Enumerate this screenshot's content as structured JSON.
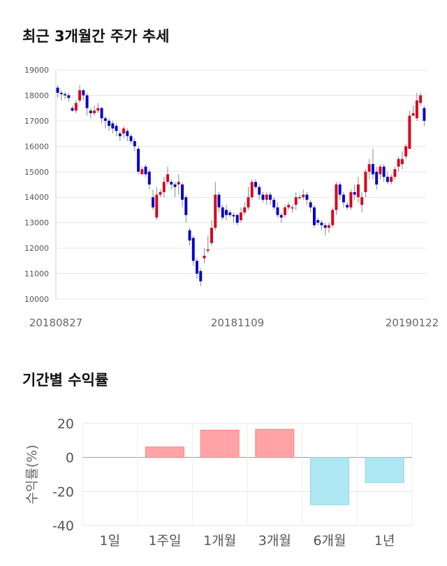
{
  "sections": {
    "price_title": "최근 3개월간 주가 추세",
    "returns_title": "기간별 수익률"
  },
  "colors": {
    "up": "#d9001b",
    "down": "#0000cc",
    "positive_bar": "#ffa3a6",
    "negative_bar": "#aee7f2"
  },
  "chart_data": [
    {
      "type": "candlestick",
      "title": "최근 3개월간 주가 추세",
      "ylim": [
        10000,
        19000
      ],
      "y_ticks": [
        "19000",
        "18000",
        "17000",
        "16000",
        "15000",
        "14000",
        "13000",
        "12000",
        "11000",
        "10000"
      ],
      "x_tick_labels": [
        "20180827",
        "20181109",
        "20190122"
      ],
      "grid": true,
      "candles": [
        [
          18300,
          18100,
          18400,
          17900
        ],
        [
          18100,
          18050,
          18200,
          17800
        ],
        [
          18050,
          18000,
          18150,
          17850
        ],
        [
          18000,
          17900,
          18100,
          17750
        ],
        [
          17500,
          17400,
          17600,
          17350
        ],
        [
          17400,
          17700,
          17800,
          17300
        ],
        [
          17800,
          18200,
          18400,
          17700
        ],
        [
          18200,
          18000,
          18250,
          17800
        ],
        [
          18000,
          17500,
          18100,
          17200
        ],
        [
          17400,
          17300,
          17500,
          17100
        ],
        [
          17300,
          17400,
          17600,
          17200
        ],
        [
          17400,
          17500,
          17700,
          17300
        ],
        [
          17500,
          17100,
          17550,
          16900
        ],
        [
          17100,
          17000,
          17200,
          16700
        ],
        [
          17000,
          16800,
          17100,
          16600
        ],
        [
          16900,
          16700,
          17000,
          16500
        ],
        [
          16800,
          16600,
          16900,
          16400
        ],
        [
          16500,
          16400,
          16600,
          16200
        ],
        [
          16500,
          16700,
          16800,
          16300
        ],
        [
          16600,
          16400,
          16700,
          16200
        ],
        [
          16400,
          16200,
          16500,
          16100
        ],
        [
          16200,
          16000,
          16300,
          15800
        ],
        [
          15900,
          15000,
          16000,
          14900
        ],
        [
          14900,
          15100,
          15200,
          14900
        ],
        [
          15200,
          14900,
          15300,
          14800
        ],
        [
          15000,
          14500,
          15100,
          14300
        ],
        [
          14000,
          13600,
          14300,
          13500
        ],
        [
          13200,
          14100,
          14400,
          13100
        ],
        [
          14100,
          14200,
          14300,
          14000
        ],
        [
          14200,
          14600,
          14800,
          14000
        ],
        [
          14600,
          14900,
          15200,
          14500
        ],
        [
          14600,
          14500,
          14700,
          14300
        ],
        [
          14500,
          14400,
          14600,
          14000
        ],
        [
          14500,
          14600,
          14900,
          14100
        ],
        [
          14500,
          13900,
          14600,
          13600
        ],
        [
          14000,
          13300,
          14100,
          13000
        ],
        [
          12700,
          12300,
          12800,
          12100
        ],
        [
          12400,
          11500,
          12500,
          11300
        ],
        [
          11500,
          11000,
          11600,
          10800
        ],
        [
          11100,
          10700,
          11200,
          10500
        ],
        [
          11600,
          11700,
          12000,
          11400
        ],
        [
          11900,
          11950,
          12500,
          11800
        ],
        [
          12200,
          12800,
          13100,
          12100
        ],
        [
          12800,
          14100,
          14600,
          12700
        ],
        [
          14100,
          13600,
          14200,
          13400
        ],
        [
          13600,
          13200,
          13700,
          13100
        ],
        [
          13500,
          13300,
          13700,
          13100
        ],
        [
          13400,
          13300,
          13500,
          13200
        ],
        [
          13300,
          13250,
          13400,
          13000
        ],
        [
          13300,
          13000,
          13350,
          12900
        ],
        [
          13100,
          13400,
          13600,
          13000
        ],
        [
          13400,
          13600,
          13800,
          13300
        ],
        [
          13600,
          14000,
          14400,
          13500
        ],
        [
          14000,
          14600,
          14700,
          13900
        ],
        [
          14600,
          14400,
          14700,
          14300
        ],
        [
          14400,
          14100,
          14500,
          13900
        ],
        [
          14100,
          13900,
          14200,
          13800
        ],
        [
          13900,
          14100,
          14200,
          13700
        ],
        [
          14100,
          13900,
          14200,
          13700
        ],
        [
          13900,
          13600,
          14000,
          13500
        ],
        [
          13600,
          13300,
          13800,
          13200
        ],
        [
          13300,
          13200,
          13400,
          13000
        ],
        [
          13300,
          13600,
          13700,
          13200
        ],
        [
          13600,
          13700,
          13800,
          13500
        ],
        [
          13600,
          13600,
          13700,
          13400
        ],
        [
          13700,
          14000,
          14200,
          13500
        ],
        [
          14000,
          14000,
          14100,
          13900
        ],
        [
          14000,
          14100,
          14300,
          13900
        ],
        [
          14100,
          13900,
          14200,
          13700
        ],
        [
          13800,
          13600,
          13900,
          13400
        ],
        [
          13600,
          12900,
          13700,
          12800
        ],
        [
          13100,
          13000,
          13200,
          12900
        ],
        [
          13000,
          12900,
          13100,
          12700
        ],
        [
          12900,
          12800,
          13000,
          12500
        ],
        [
          12800,
          12900,
          13000,
          12600
        ],
        [
          12900,
          13500,
          13600,
          12800
        ],
        [
          13500,
          14500,
          14600,
          13300
        ],
        [
          14500,
          14100,
          14600,
          13900
        ],
        [
          14100,
          13800,
          14200,
          13600
        ],
        [
          13700,
          13600,
          13800,
          13500
        ],
        [
          13600,
          14200,
          14300,
          13500
        ],
        [
          14200,
          14100,
          14500,
          13900
        ],
        [
          14000,
          14500,
          14800,
          13800
        ],
        [
          13700,
          14000,
          14200,
          13400
        ],
        [
          14200,
          15000,
          15100,
          14000
        ],
        [
          15000,
          15300,
          15500,
          14700
        ],
        [
          15300,
          14900,
          15900,
          14700
        ],
        [
          15000,
          14500,
          15200,
          14300
        ],
        [
          14900,
          15200,
          15300,
          14700
        ],
        [
          15200,
          14800,
          15300,
          14600
        ],
        [
          14800,
          14600,
          15000,
          14500
        ],
        [
          14600,
          14800,
          14900,
          14500
        ],
        [
          14800,
          15100,
          15200,
          14700
        ],
        [
          15200,
          15500,
          15600,
          15000
        ],
        [
          15300,
          15500,
          15800,
          15100
        ],
        [
          15600,
          16000,
          16100,
          15500
        ],
        [
          15900,
          17200,
          17400,
          15900
        ],
        [
          17200,
          17300,
          17600,
          17200
        ],
        [
          17100,
          17800,
          18100,
          17000
        ],
        [
          17700,
          18000,
          18100,
          17600
        ],
        [
          17500,
          17000,
          17600,
          16800
        ]
      ]
    },
    {
      "type": "bar",
      "title": "기간별 수익률",
      "ylabel": "수익률(%)",
      "ylim": [
        -40,
        20
      ],
      "y_ticks": [
        "20",
        "0",
        "-20",
        "-40"
      ],
      "categories": [
        "1일",
        "1주일",
        "1개월",
        "3개월",
        "6개월",
        "1년"
      ],
      "values": [
        0,
        6.2,
        16.1,
        16.6,
        -27.8,
        -14.8
      ],
      "grid": true
    }
  ]
}
